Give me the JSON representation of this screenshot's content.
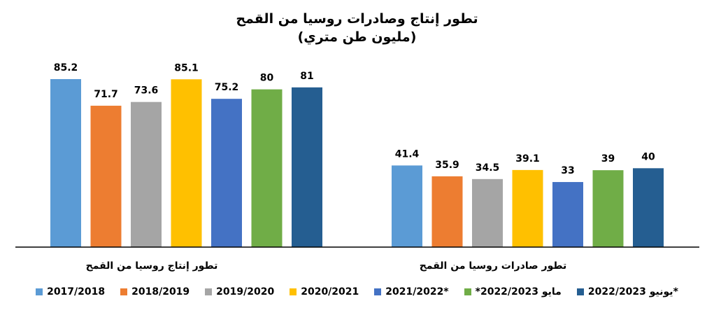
{
  "chart_data": {
    "type": "bar",
    "title": "تطور إنتاج وصادرات روسيا من القمح",
    "subtitle": "(مليون طن متري)",
    "categories": [
      "تطور إنتاج روسيا من القمح",
      "تطور صادرات روسيا من القمح"
    ],
    "series": [
      {
        "name": "2017/2018",
        "color": "#5B9BD5",
        "values": [
          85.2,
          41.4
        ]
      },
      {
        "name": "2018/2019",
        "color": "#ED7D31",
        "values": [
          71.7,
          35.9
        ]
      },
      {
        "name": "2019/2020",
        "color": "#A5A5A5",
        "values": [
          73.6,
          34.5
        ]
      },
      {
        "name": "2020/2021",
        "color": "#FFC000",
        "values": [
          85.1,
          39.1
        ]
      },
      {
        "name": "2021/2022*",
        "color": "#4472C4",
        "values": [
          75.2,
          33
        ]
      },
      {
        "name": "*2022/2023 مايو",
        "color": "#70AD47",
        "values": [
          80,
          39
        ]
      },
      {
        "name": "يونيو 2022/2023*",
        "color": "#255E91",
        "values": [
          81,
          40
        ]
      }
    ],
    "ylim": [
      0,
      90
    ],
    "grid": false,
    "legend_position": "bottom"
  }
}
